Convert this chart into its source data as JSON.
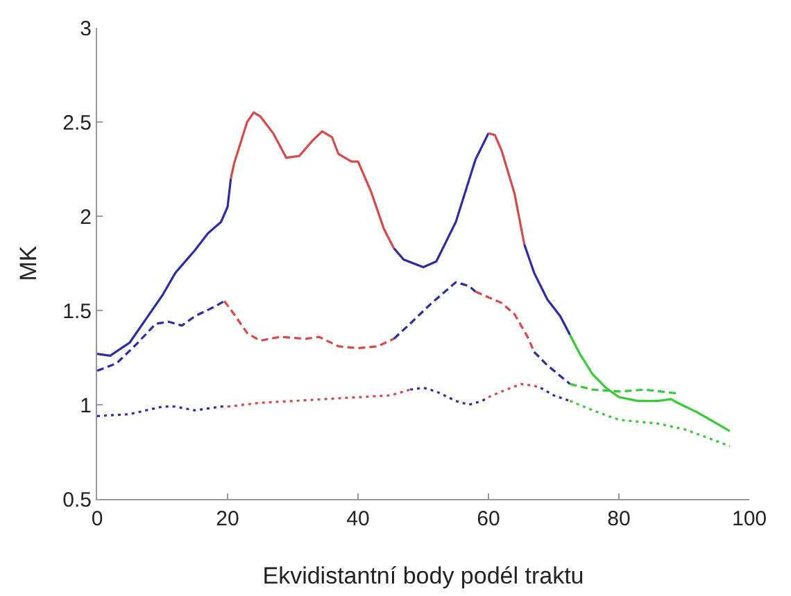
{
  "chart_data": {
    "type": "line",
    "xlabel": "Ekvidistantní body podél traktu",
    "ylabel": "MK",
    "xlim": [
      0,
      100
    ],
    "ylim": [
      0.5,
      3
    ],
    "xticks": [
      0,
      20,
      40,
      60,
      80,
      100
    ],
    "yticks": [
      0.5,
      1,
      1.5,
      2,
      2.5,
      3
    ],
    "grid": false,
    "marker": "none",
    "series": [
      {
        "color": "#2b2ba8",
        "line_style": "solid",
        "x": [
          0,
          2,
          5,
          8,
          10,
          12,
          15,
          17,
          19,
          20,
          20.5
        ],
        "values": [
          1.27,
          1.26,
          1.33,
          1.48,
          1.58,
          1.7,
          1.82,
          1.91,
          1.97,
          2.05,
          2.2
        ]
      },
      {
        "color": "#d94848",
        "line_style": "solid",
        "x": [
          20.5,
          21,
          23,
          24,
          25,
          27,
          29,
          31,
          33,
          34.5,
          36,
          37,
          39,
          40,
          42,
          44,
          45.5
        ],
        "values": [
          2.2,
          2.28,
          2.5,
          2.55,
          2.53,
          2.44,
          2.31,
          2.32,
          2.4,
          2.45,
          2.42,
          2.33,
          2.29,
          2.29,
          2.13,
          1.93,
          1.83
        ]
      },
      {
        "color": "#2b2ba8",
        "line_style": "solid",
        "x": [
          45.5,
          47,
          50,
          52,
          55,
          58,
          60
        ],
        "values": [
          1.83,
          1.77,
          1.73,
          1.76,
          1.97,
          2.3,
          2.44
        ]
      },
      {
        "color": "#d94848",
        "line_style": "solid",
        "x": [
          60,
          61,
          62,
          64,
          65.5
        ],
        "values": [
          2.44,
          2.43,
          2.35,
          2.12,
          1.85
        ]
      },
      {
        "color": "#2b2ba8",
        "line_style": "solid",
        "x": [
          65.5,
          67,
          69,
          71,
          72.5
        ],
        "values": [
          1.85,
          1.7,
          1.56,
          1.47,
          1.37
        ]
      },
      {
        "color": "#33cc33",
        "line_style": "solid",
        "x": [
          72.5,
          74,
          76,
          78,
          80,
          83,
          86,
          88,
          89,
          92,
          95,
          97
        ],
        "values": [
          1.37,
          1.27,
          1.16,
          1.09,
          1.04,
          1.02,
          1.02,
          1.03,
          1.01,
          0.96,
          0.9,
          0.86
        ]
      },
      {
        "color": "#2b2ba8",
        "line_style": "dashed",
        "x": [
          0,
          3,
          6,
          9,
          11,
          13,
          15,
          18,
          19.5
        ],
        "values": [
          1.18,
          1.22,
          1.32,
          1.43,
          1.44,
          1.42,
          1.47,
          1.52,
          1.55
        ]
      },
      {
        "color": "#d94848",
        "line_style": "dashed",
        "x": [
          19.5,
          21,
          23,
          25,
          28,
          32,
          34,
          37,
          40,
          43,
          45.5
        ],
        "values": [
          1.55,
          1.48,
          1.38,
          1.34,
          1.36,
          1.35,
          1.36,
          1.31,
          1.3,
          1.31,
          1.35
        ]
      },
      {
        "color": "#2b2ba8",
        "line_style": "dashed",
        "x": [
          45.5,
          48,
          51,
          55,
          57,
          58
        ],
        "values": [
          1.35,
          1.43,
          1.53,
          1.65,
          1.63,
          1.6
        ]
      },
      {
        "color": "#d94848",
        "line_style": "dashed",
        "x": [
          58,
          62,
          64,
          66,
          67
        ],
        "values": [
          1.6,
          1.54,
          1.48,
          1.36,
          1.28
        ]
      },
      {
        "color": "#2b2ba8",
        "line_style": "dashed",
        "x": [
          67,
          69,
          72.5
        ],
        "values": [
          1.28,
          1.21,
          1.11
        ]
      },
      {
        "color": "#33cc33",
        "line_style": "dashed",
        "x": [
          72.5,
          76,
          80,
          84,
          89
        ],
        "values": [
          1.11,
          1.08,
          1.07,
          1.08,
          1.06
        ]
      },
      {
        "color": "#2b2ba8",
        "line_style": "dotted",
        "x": [
          0,
          5,
          10,
          12,
          15,
          19,
          20
        ],
        "values": [
          0.94,
          0.95,
          0.99,
          0.99,
          0.97,
          0.99,
          0.99
        ]
      },
      {
        "color": "#d94848",
        "line_style": "dotted",
        "x": [
          20,
          25,
          30,
          35,
          40,
          45,
          48
        ],
        "values": [
          0.99,
          1.01,
          1.02,
          1.03,
          1.04,
          1.05,
          1.08
        ]
      },
      {
        "color": "#2b2ba8",
        "line_style": "dotted",
        "x": [
          48,
          50,
          52,
          55,
          57,
          59,
          60
        ],
        "values": [
          1.08,
          1.09,
          1.07,
          1.02,
          1,
          1.02,
          1.04
        ]
      },
      {
        "color": "#d94848",
        "line_style": "dotted",
        "x": [
          60,
          62,
          65,
          67,
          68
        ],
        "values": [
          1.04,
          1.07,
          1.11,
          1.1,
          1.09
        ]
      },
      {
        "color": "#2b2ba8",
        "line_style": "dotted",
        "x": [
          68,
          70,
          72.5
        ],
        "values": [
          1.09,
          1.05,
          1.02
        ]
      },
      {
        "color": "#33cc33",
        "line_style": "dotted",
        "x": [
          72.5,
          76,
          80,
          83,
          86,
          90,
          94,
          97
        ],
        "values": [
          1.02,
          0.97,
          0.92,
          0.91,
          0.9,
          0.87,
          0.82,
          0.78
        ]
      }
    ]
  }
}
